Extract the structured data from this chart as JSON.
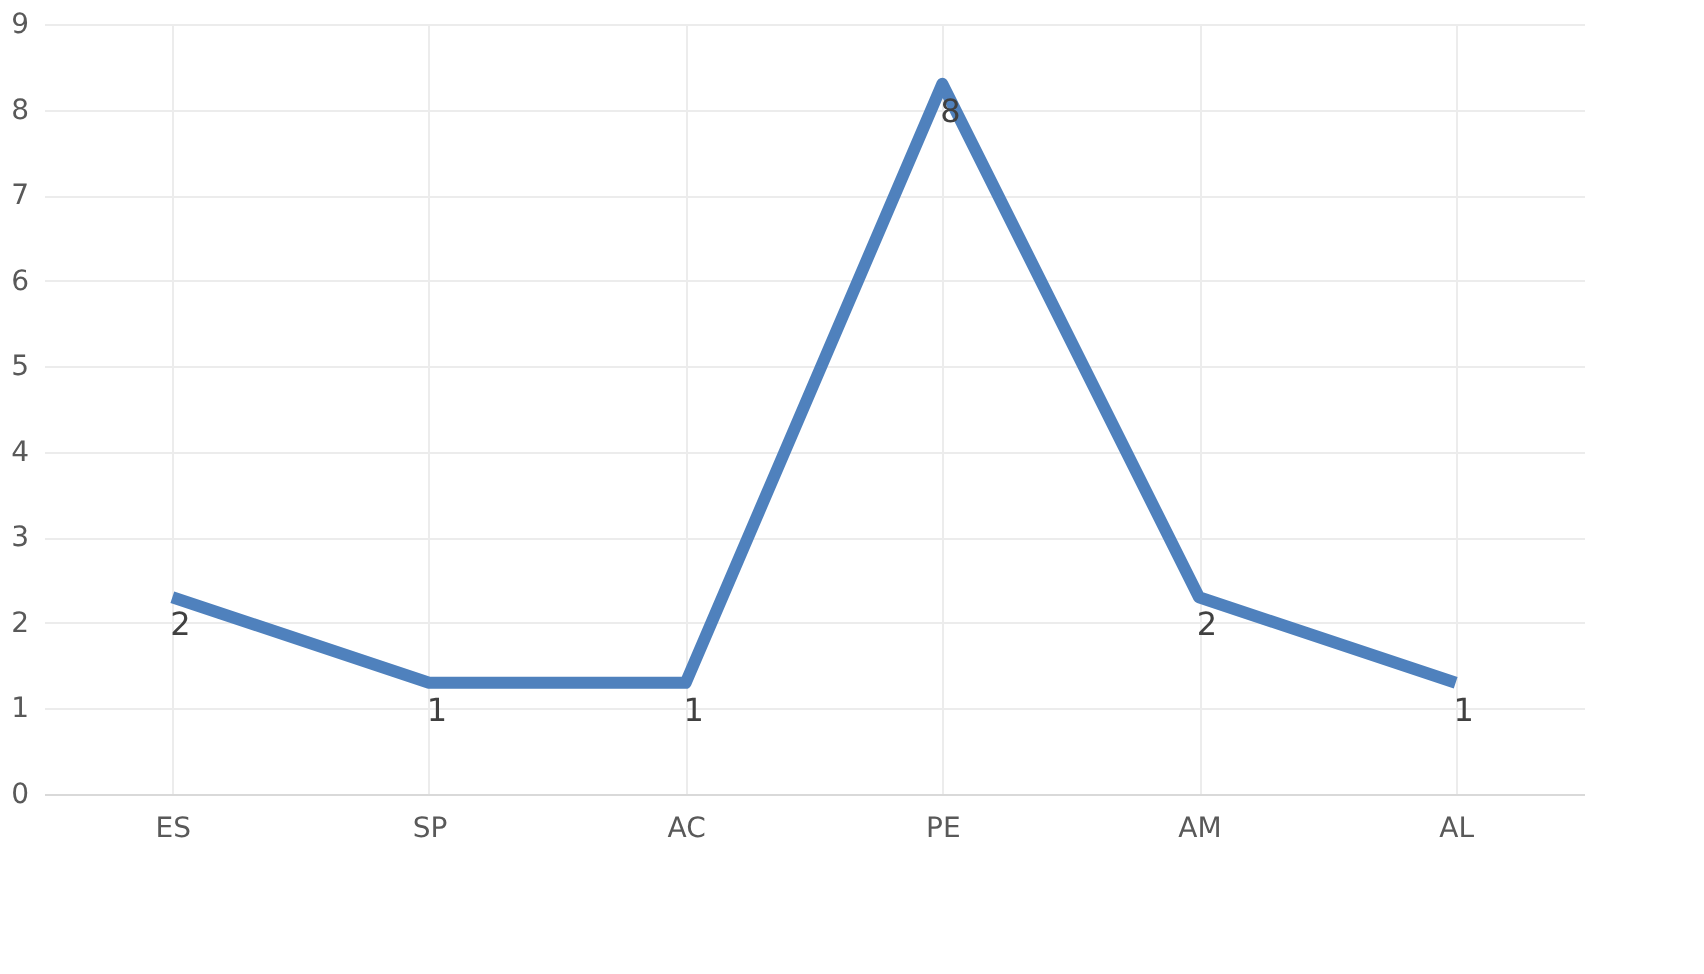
{
  "chart_data": {
    "type": "line",
    "categories": [
      "ES",
      "SP",
      "AC",
      "PE",
      "AM",
      "AL"
    ],
    "series": [
      {
        "color": "#4f81bd",
        "values": [
          2.3,
          1.3,
          1.3,
          8.3,
          2.3,
          1.3
        ],
        "value_labels": [
          "2",
          "1",
          "1",
          "8",
          "2",
          "1"
        ]
      }
    ],
    "ylim": [
      0,
      9
    ],
    "yticks": [
      0,
      1,
      2,
      3,
      4,
      5,
      6,
      7,
      8,
      9
    ],
    "grid": true,
    "marker": "none",
    "line_style": "solid"
  }
}
